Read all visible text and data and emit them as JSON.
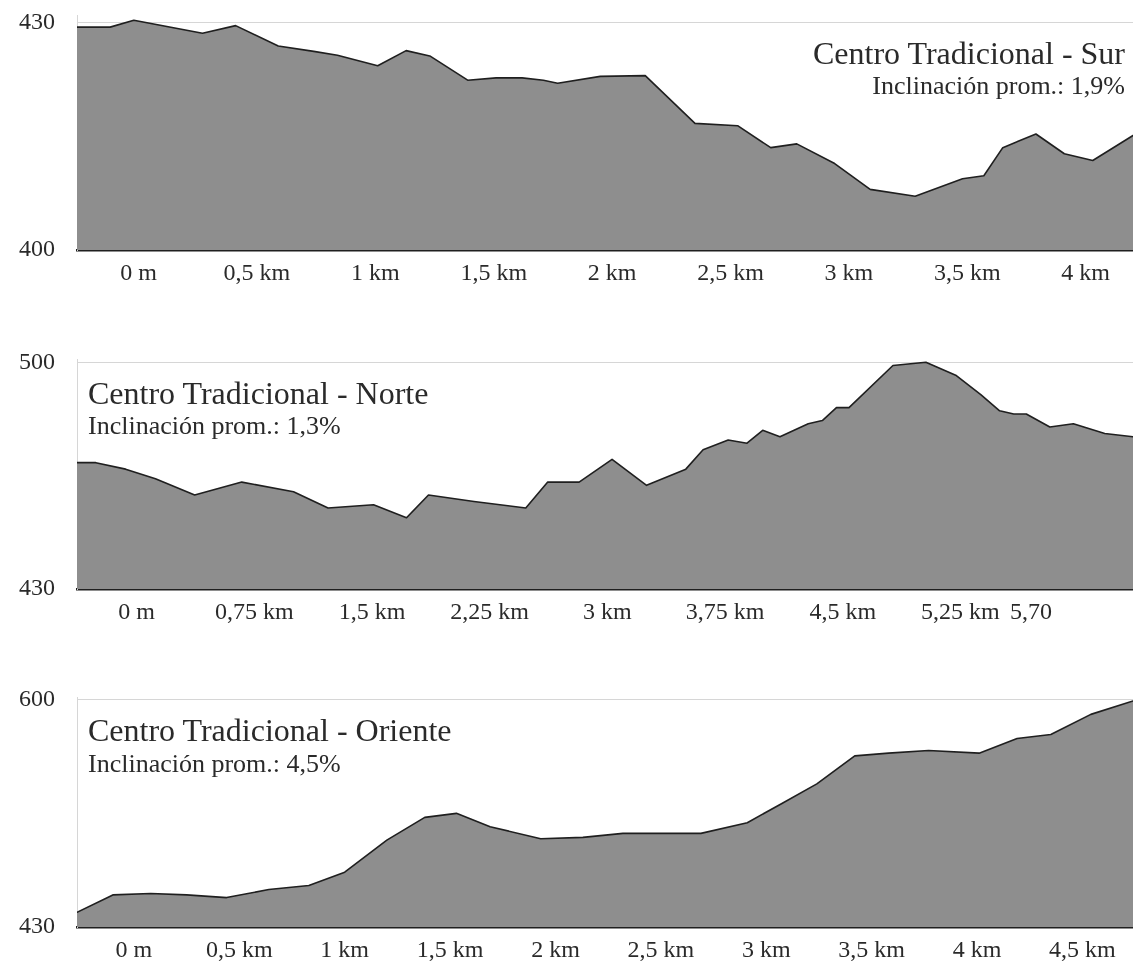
{
  "chart_data": [
    {
      "type": "area",
      "title": "Centro Tradicional - Sur",
      "subtitle": "Inclinación prom.: 1,9%",
      "color": "#8e8e8e",
      "marker": "none",
      "line_style": "solid",
      "grid": "y",
      "x": [
        -0.26,
        -0.12,
        -0.02,
        0.27,
        0.41,
        0.59,
        0.74,
        0.84,
        1.01,
        1.13,
        1.23,
        1.39,
        1.51,
        1.62,
        1.71,
        1.77,
        1.95,
        2.14,
        2.35,
        2.53,
        2.67,
        2.78,
        2.94,
        3.09,
        3.28,
        3.48,
        3.57,
        3.65,
        3.79,
        3.91,
        4.03,
        4.2
      ],
      "values": [
        429.4,
        429.4,
        430.3,
        428.6,
        429.6,
        426.9,
        426.2,
        425.7,
        424.3,
        426.3,
        425.6,
        422.4,
        422.7,
        422.7,
        422.4,
        422.0,
        422.9,
        423.0,
        416.7,
        416.4,
        413.5,
        414.0,
        411.4,
        408.0,
        407.1,
        409.4,
        409.8,
        413.5,
        415.3,
        412.7,
        411.8,
        415.1
      ],
      "xlim": [
        -0.26,
        4.2
      ],
      "ylim": [
        400,
        431
      ],
      "yticks": [
        400,
        430
      ],
      "xticks": [
        {
          "value": 0,
          "label": "0 m"
        },
        {
          "value": 0.5,
          "label": "0,5 km"
        },
        {
          "value": 1,
          "label": "1 km"
        },
        {
          "value": 1.5,
          "label": "1,5 km"
        },
        {
          "value": 2,
          "label": "2 km"
        },
        {
          "value": 2.5,
          "label": "2,5 km"
        },
        {
          "value": 3,
          "label": "3 km"
        },
        {
          "value": 3.5,
          "label": "3,5 km"
        },
        {
          "value": 4,
          "label": "4 km"
        }
      ]
    },
    {
      "type": "area",
      "title": "Centro Tradicional - Norte",
      "subtitle": "Inclinación prom.: 1,3%",
      "color": "#8e8e8e",
      "marker": "none",
      "line_style": "solid",
      "grid": "y",
      "x": [
        -0.38,
        -0.26,
        -0.07,
        0.12,
        0.37,
        0.67,
        1.0,
        1.22,
        1.51,
        1.72,
        1.86,
        2.15,
        2.48,
        2.62,
        2.82,
        3.03,
        3.25,
        3.5,
        3.61,
        3.77,
        3.89,
        3.99,
        4.1,
        4.28,
        4.37,
        4.46,
        4.54,
        4.82,
        5.03,
        5.22,
        5.38,
        5.5,
        5.59,
        5.67,
        5.82,
        5.97,
        6.17,
        6.35
      ],
      "values": [
        469,
        469,
        467,
        464,
        459,
        463,
        460,
        455,
        456,
        452,
        459,
        457,
        455,
        463,
        463,
        470,
        462,
        467,
        473,
        476,
        475,
        479,
        477,
        481,
        482,
        486,
        486,
        499,
        500,
        496,
        490,
        485,
        484,
        484,
        480,
        481,
        478,
        477
      ],
      "xlim": [
        -0.38,
        6.35
      ],
      "ylim": [
        430,
        501
      ],
      "yticks": [
        430,
        500
      ],
      "xticks": [
        {
          "value": 0,
          "label": "0 m"
        },
        {
          "value": 0.75,
          "label": "0,75 km"
        },
        {
          "value": 1.5,
          "label": "1,5 km"
        },
        {
          "value": 2.25,
          "label": "2,25 km"
        },
        {
          "value": 3,
          "label": "3 km"
        },
        {
          "value": 3.75,
          "label": "3,75 km"
        },
        {
          "value": 4.5,
          "label": "4,5 km"
        },
        {
          "value": 5.25,
          "label": "5,25 km"
        },
        {
          "value": 5.7,
          "label": "5,70"
        }
      ]
    },
    {
      "type": "area",
      "title": "Centro Tradicional - Oriente",
      "subtitle": "Inclinación prom.: 4,5%",
      "color": "#8e8e8e",
      "marker": "none",
      "line_style": "solid",
      "grid": "y",
      "x": [
        -0.27,
        -0.1,
        0.08,
        0.25,
        0.44,
        0.64,
        0.83,
        1.0,
        1.2,
        1.38,
        1.53,
        1.69,
        1.93,
        2.13,
        2.32,
        2.69,
        2.91,
        3.07,
        3.24,
        3.42,
        3.58,
        3.77,
        4.01,
        4.19,
        4.35,
        4.54,
        4.74
      ],
      "values": [
        441,
        454,
        455,
        454,
        452,
        458,
        461,
        471,
        495,
        512,
        515,
        505,
        496,
        497,
        500,
        500,
        508,
        522,
        537,
        558,
        560,
        562,
        560,
        571,
        574,
        589,
        599
      ],
      "xlim": [
        -0.27,
        4.74
      ],
      "ylim": [
        430,
        602
      ],
      "yticks": [
        430,
        600
      ],
      "xticks": [
        {
          "value": 0,
          "label": "0 m"
        },
        {
          "value": 0.5,
          "label": "0,5 km"
        },
        {
          "value": 1,
          "label": "1 km"
        },
        {
          "value": 1.5,
          "label": "1,5 km"
        },
        {
          "value": 2,
          "label": "2 km"
        },
        {
          "value": 2.5,
          "label": "2,5 km"
        },
        {
          "value": 3,
          "label": "3 km"
        },
        {
          "value": 3.5,
          "label": "3,5 km"
        },
        {
          "value": 4,
          "label": "4 km"
        },
        {
          "value": 4.5,
          "label": "4,5 km"
        }
      ]
    }
  ]
}
